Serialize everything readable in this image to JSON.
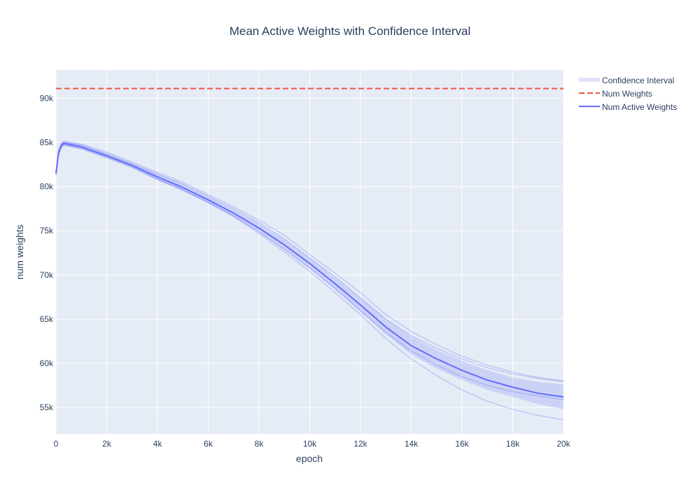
{
  "chart_data": {
    "type": "line",
    "title": "Mean Active Weights with Confidence Interval",
    "xlabel": "epoch",
    "ylabel": "num weights",
    "xlim": [
      0,
      20000
    ],
    "ylim": [
      52000,
      93200
    ],
    "grid": true,
    "legend_position": "top-right",
    "x_ticks": [
      0,
      2000,
      4000,
      6000,
      8000,
      10000,
      12000,
      14000,
      16000,
      18000,
      20000
    ],
    "x_tick_labels": [
      "0",
      "2k",
      "4k",
      "6k",
      "8k",
      "10k",
      "12k",
      "14k",
      "16k",
      "18k",
      "20k"
    ],
    "y_ticks": [
      55000,
      60000,
      65000,
      70000,
      75000,
      80000,
      85000,
      90000
    ],
    "y_tick_labels": [
      "55k",
      "60k",
      "65k",
      "70k",
      "75k",
      "80k",
      "85k",
      "90k"
    ],
    "x": [
      0,
      100,
      200,
      300,
      500,
      1000,
      2000,
      3000,
      4000,
      5000,
      6000,
      7000,
      8000,
      9000,
      10000,
      11000,
      12000,
      13000,
      14000,
      15000,
      16000,
      17000,
      18000,
      19000,
      20000
    ],
    "series": [
      {
        "name": "Num Active Weights",
        "style": "line",
        "color": "#636efa",
        "values": [
          81500,
          83800,
          84600,
          84900,
          84800,
          84500,
          83500,
          82400,
          81100,
          79900,
          78500,
          77000,
          75300,
          73400,
          71300,
          69000,
          66600,
          64100,
          62000,
          60500,
          59200,
          58100,
          57300,
          56600,
          56200
        ]
      },
      {
        "name": "Num Weights",
        "style": "dash",
        "color": "#ef553b",
        "values": [
          91100,
          91100,
          91100,
          91100,
          91100,
          91100,
          91100,
          91100,
          91100,
          91100,
          91100,
          91100,
          91100,
          91100,
          91100,
          91100,
          91100,
          91100,
          91100,
          91100,
          91100,
          91100,
          91100,
          91100,
          91100
        ]
      },
      {
        "name": "Confidence Interval",
        "style": "band",
        "color": "#636efa",
        "upper": [
          82000,
          84300,
          85000,
          85200,
          85100,
          84800,
          83800,
          82700,
          81500,
          80300,
          78900,
          77400,
          75800,
          74000,
          71900,
          69700,
          67400,
          65000,
          63000,
          61500,
          60300,
          59200,
          58400,
          57900,
          57600
        ],
        "lower": [
          81000,
          83300,
          84200,
          84600,
          84500,
          84200,
          83200,
          82100,
          80700,
          79500,
          78100,
          76600,
          74800,
          72800,
          70700,
          68300,
          65800,
          63300,
          61000,
          59400,
          58100,
          57000,
          56200,
          55400,
          54800
        ]
      }
    ],
    "trials": [
      [
        81600,
        83900,
        84700,
        85000,
        84900,
        84700,
        83700,
        82600,
        81400,
        80300,
        78900,
        77500,
        75900,
        74100,
        71900,
        69800,
        67400,
        65000,
        63100,
        61700,
        60500,
        59500,
        58800,
        58300,
        57900
      ],
      [
        81400,
        83700,
        84500,
        84800,
        84700,
        84400,
        83400,
        82300,
        80900,
        79700,
        78300,
        76700,
        74900,
        72900,
        70800,
        68500,
        66000,
        63500,
        61400,
        59800,
        58500,
        57500,
        56800,
        56300,
        55900
      ],
      [
        81300,
        83600,
        84400,
        84700,
        84600,
        84300,
        83300,
        82200,
        80800,
        79600,
        78200,
        76600,
        74700,
        72600,
        70400,
        68000,
        65500,
        62800,
        60500,
        58600,
        57000,
        55700,
        54800,
        54100,
        53600
      ],
      [
        81700,
        84000,
        84800,
        85100,
        85000,
        84800,
        83900,
        82800,
        81600,
        80500,
        79100,
        77700,
        76200,
        74500,
        72300,
        70200,
        68000,
        65500,
        63600,
        62100,
        60800,
        59800,
        59000,
        58400,
        58000
      ]
    ]
  }
}
